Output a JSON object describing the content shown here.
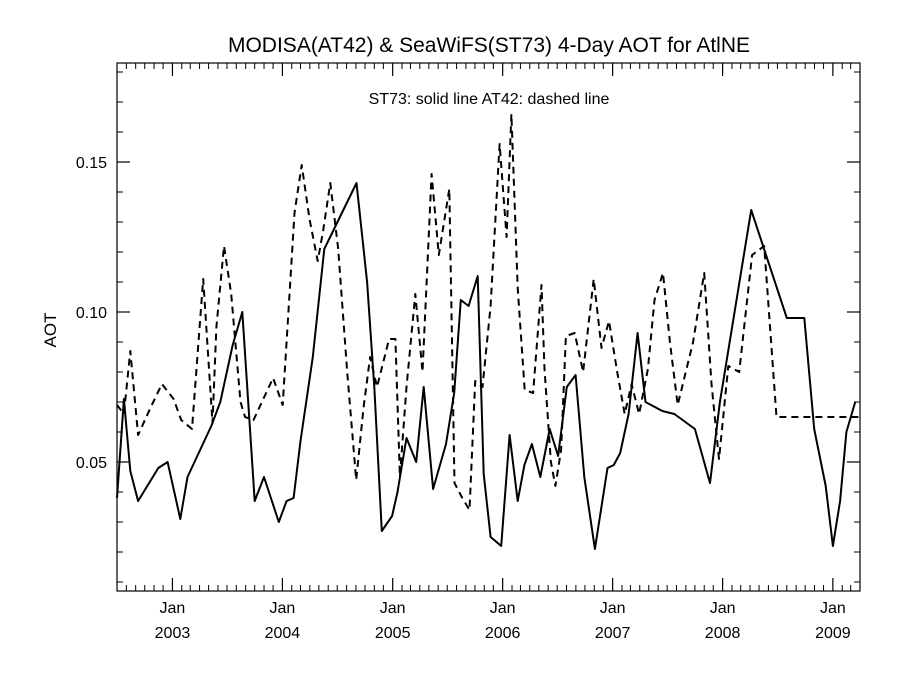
{
  "chart_data": {
    "type": "line",
    "title": "MODISA(AT42) & SeaWiFS(ST73) 4-Day AOT for AtlNE",
    "annotation": "ST73: solid line   AT42: dashed line",
    "xlabel": "",
    "ylabel": "AOT",
    "xlim": [
      "2002-07-01",
      "2009-04-01"
    ],
    "ylim": [
      0.007,
      0.183
    ],
    "y_ticks": [
      0.05,
      0.1,
      0.15
    ],
    "y_tick_labels": [
      "0.05",
      "0.10",
      "0.15"
    ],
    "y_minor_step": 0.01,
    "x_ticks": [
      "2003-01-01",
      "2004-01-01",
      "2005-01-01",
      "2006-01-01",
      "2007-01-01",
      "2008-01-01",
      "2009-01-01"
    ],
    "x_tick_labels_month": [
      "Jan",
      "Jan",
      "Jan",
      "Jan",
      "Jan",
      "Jan",
      "Jan"
    ],
    "x_tick_labels_year": [
      "2003",
      "2004",
      "2005",
      "2006",
      "2007",
      "2008",
      "2009"
    ],
    "x_minor": "monthly",
    "grid": false,
    "legend": "none",
    "colors": {
      "line": "#000000",
      "axes": "#000000",
      "background": "#ffffff"
    },
    "series": [
      {
        "style": "solid",
        "x": [
          "2002-07-01",
          "2002-07-24",
          "2002-08-14",
          "2002-09-09",
          "2002-11-15",
          "2002-12-16",
          "2003-01-27",
          "2003-02-20",
          "2003-05-10",
          "2003-06-09",
          "2003-07-20",
          "2003-08-21",
          "2003-10-01",
          "2003-11-01",
          "2003-12-20",
          "2004-01-15",
          "2004-02-07",
          "2004-03-01",
          "2004-04-11",
          "2004-05-19",
          "2004-09-03",
          "2004-10-08",
          "2004-11-01",
          "2004-11-26",
          "2004-12-30",
          "2005-01-17",
          "2005-02-16",
          "2005-03-20",
          "2005-04-14",
          "2005-05-15",
          "2005-06-27",
          "2005-07-24",
          "2005-08-15",
          "2005-09-10",
          "2005-10-10",
          "2005-10-30",
          "2005-11-22",
          "2005-12-27",
          "2006-01-24",
          "2006-02-20",
          "2006-03-14",
          "2006-04-08",
          "2006-05-06",
          "2006-06-06",
          "2006-07-04",
          "2006-08-02",
          "2006-08-31",
          "2006-09-29",
          "2006-11-03",
          "2006-12-15",
          "2007-01-05",
          "2007-01-26",
          "2007-02-23",
          "2007-03-25",
          "2007-04-20",
          "2007-06-15",
          "2007-07-25",
          "2007-10-01",
          "2007-11-20",
          "2007-12-23",
          "2008-04-05",
          "2008-08-01",
          "2008-09-28",
          "2008-10-31",
          "2008-12-08",
          "2009-01-01",
          "2009-01-25",
          "2009-02-15",
          "2009-03-16"
        ],
        "y": [
          0.038,
          0.071,
          0.047,
          0.037,
          0.048,
          0.05,
          0.031,
          0.045,
          0.062,
          0.07,
          0.089,
          0.1,
          0.037,
          0.045,
          0.03,
          0.037,
          0.038,
          0.057,
          0.085,
          0.121,
          0.143,
          0.11,
          0.075,
          0.027,
          0.032,
          0.04,
          0.058,
          0.05,
          0.075,
          0.041,
          0.056,
          0.073,
          0.104,
          0.102,
          0.112,
          0.046,
          0.025,
          0.022,
          0.059,
          0.037,
          0.049,
          0.056,
          0.045,
          0.061,
          0.052,
          0.075,
          0.079,
          0.045,
          0.021,
          0.048,
          0.049,
          0.053,
          0.066,
          0.093,
          0.07,
          0.067,
          0.066,
          0.061,
          0.043,
          0.07,
          0.134,
          0.098,
          0.098,
          0.061,
          0.042,
          0.022,
          0.037,
          0.06,
          0.07
        ]
      },
      {
        "style": "dashed",
        "x": [
          "2002-07-01",
          "2002-07-24",
          "2002-08-14",
          "2002-09-09",
          "2002-10-20",
          "2002-11-27",
          "2003-01-05",
          "2003-01-30",
          "2003-03-07",
          "2003-04-13",
          "2003-05-14",
          "2003-05-27",
          "2003-06-21",
          "2003-07-15",
          "2003-08-15",
          "2003-08-30",
          "2003-09-27",
          "2003-10-25",
          "2003-12-01",
          "2004-01-02",
          "2004-02-10",
          "2004-03-05",
          "2004-03-31",
          "2004-04-27",
          "2004-05-15",
          "2004-06-08",
          "2004-07-04",
          "2004-08-03",
          "2004-09-02",
          "2004-09-26",
          "2004-10-18",
          "2004-11-10",
          "2004-12-20",
          "2005-01-10",
          "2005-01-25",
          "2005-02-16",
          "2005-03-17",
          "2005-04-10",
          "2005-05-10",
          "2005-06-03",
          "2005-07-08",
          "2005-07-25",
          "2005-08-20",
          "2005-09-13",
          "2005-10-02",
          "2005-10-26",
          "2005-11-22",
          "2005-12-22",
          "2006-01-14",
          "2006-01-30",
          "2006-02-20",
          "2006-03-15",
          "2006-04-12",
          "2006-05-10",
          "2006-05-20",
          "2006-06-10",
          "2006-06-25",
          "2006-07-14",
          "2006-07-30",
          "2006-08-28",
          "2006-09-25",
          "2006-10-30",
          "2006-11-25",
          "2006-12-20",
          "2007-01-16",
          "2007-02-10",
          "2007-03-05",
          "2007-03-30",
          "2007-04-28",
          "2007-05-20",
          "2007-06-17",
          "2007-07-10",
          "2007-08-05",
          "2007-09-25",
          "2007-11-01",
          "2007-11-25",
          "2007-12-20",
          "2008-01-20",
          "2008-02-25",
          "2008-04-08",
          "2008-05-18",
          "2008-06-28",
          "2008-08-08",
          "2008-09-20",
          "2008-10-28",
          "2008-12-01",
          "2008-12-30",
          "2009-01-28",
          "2009-02-22",
          "2009-03-16",
          "2009-04-01"
        ],
        "y": [
          0.069,
          0.066,
          0.087,
          0.059,
          0.068,
          0.076,
          0.071,
          0.064,
          0.061,
          0.111,
          0.063,
          0.095,
          0.122,
          0.106,
          0.07,
          0.065,
          0.064,
          0.07,
          0.078,
          0.069,
          0.133,
          0.149,
          0.131,
          0.117,
          0.127,
          0.143,
          0.121,
          0.08,
          0.044,
          0.068,
          0.085,
          0.075,
          0.091,
          0.091,
          0.045,
          0.075,
          0.106,
          0.08,
          0.146,
          0.119,
          0.141,
          0.043,
          0.038,
          0.034,
          0.077,
          0.075,
          0.102,
          0.156,
          0.125,
          0.166,
          0.108,
          0.074,
          0.073,
          0.109,
          0.081,
          0.05,
          0.042,
          0.054,
          0.092,
          0.093,
          0.08,
          0.111,
          0.088,
          0.097,
          0.08,
          0.066,
          0.076,
          0.066,
          0.081,
          0.104,
          0.113,
          0.09,
          0.069,
          0.09,
          0.113,
          0.076,
          0.051,
          0.082,
          0.08,
          0.119,
          0.122,
          0.065,
          0.065,
          0.065,
          0.065,
          0.065,
          0.065,
          0.065,
          0.065,
          0.065,
          0.065
        ]
      }
    ]
  }
}
